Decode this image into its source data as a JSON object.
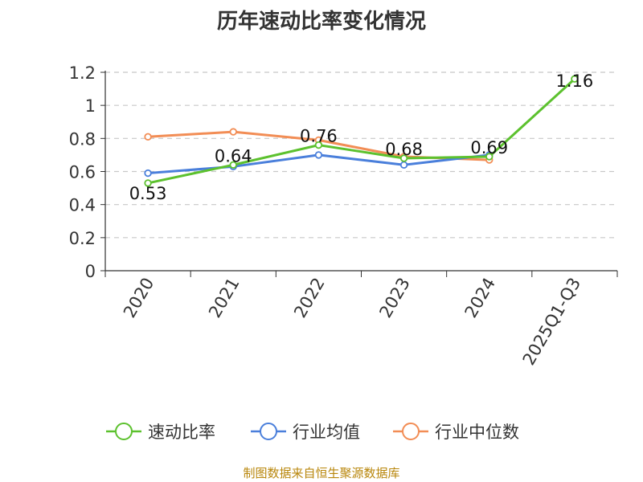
{
  "chart_data": {
    "type": "line",
    "title": "历年速动比率变化情况",
    "categories": [
      "2020",
      "2021",
      "2022",
      "2023",
      "2024",
      "2025Q1-Q3"
    ],
    "ylim": [
      0,
      1.2
    ],
    "yticks": [
      "0",
      "0.2",
      "0.4",
      "0.6",
      "0.8",
      "1",
      "1.2"
    ],
    "grid": true,
    "legend_position": "bottom",
    "series": [
      {
        "name": "速动比率",
        "color": "#5cc12e",
        "values": [
          0.53,
          0.64,
          0.76,
          0.68,
          0.69,
          1.16
        ],
        "labels": [
          "0.53",
          "0.64",
          "0.76",
          "0.68",
          "0.69",
          "1.16"
        ]
      },
      {
        "name": "行业均值",
        "color": "#4a7fdb",
        "values": [
          0.59,
          0.63,
          0.7,
          0.64,
          0.7,
          null
        ]
      },
      {
        "name": "行业中位数",
        "color": "#f28d55",
        "values": [
          0.81,
          0.84,
          0.79,
          0.69,
          0.67,
          null
        ]
      }
    ]
  },
  "source": "制图数据来自恒生聚源数据库"
}
